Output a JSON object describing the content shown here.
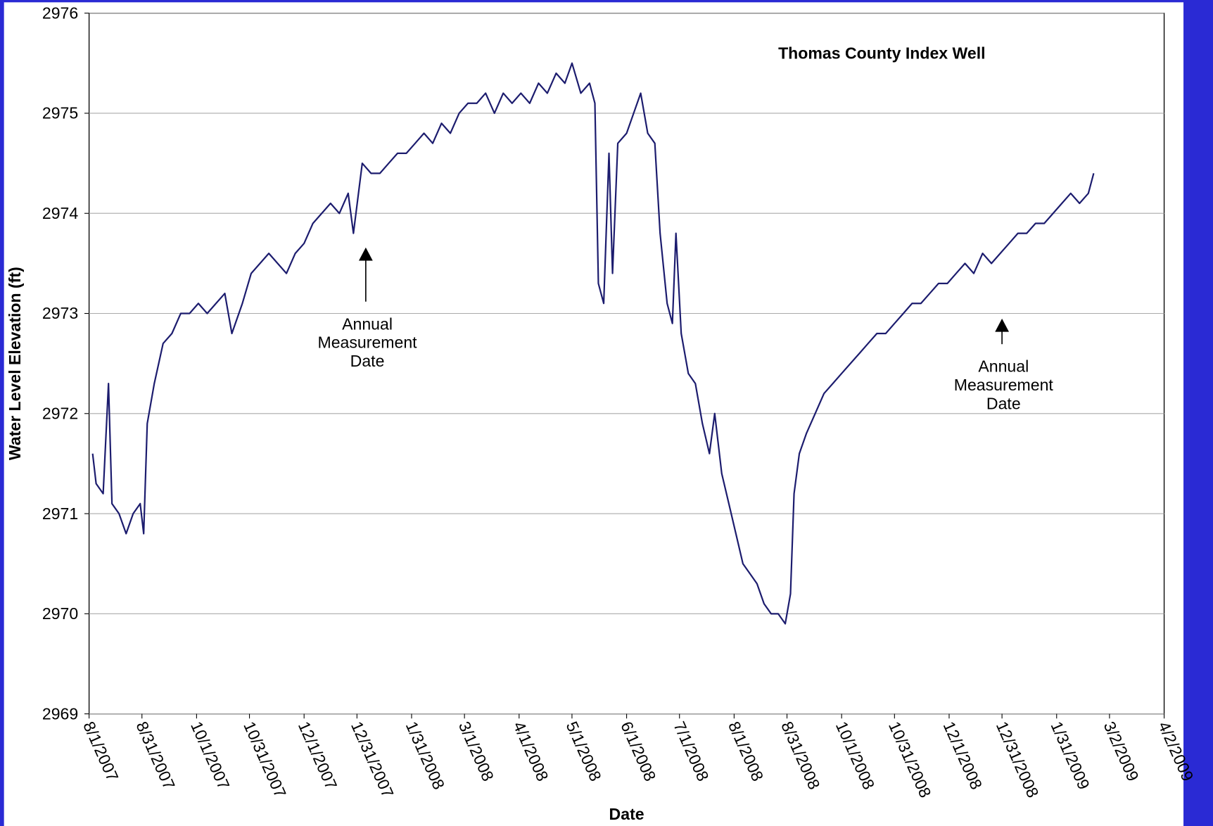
{
  "chart_data": {
    "type": "line",
    "title": "Thomas County Index Well",
    "x_label": "Date",
    "y_label": "Water Level Elevation (ft)",
    "color": "#1c1c6e",
    "grid": true,
    "x": [
      "8/3/2007",
      "8/5/2007",
      "8/9/2007",
      "8/12/2007",
      "8/14/2007",
      "8/18/2007",
      "8/22/2007",
      "8/26/2007",
      "8/30/2007",
      "9/1/2007",
      "9/3/2007",
      "9/7/2007",
      "9/12/2007",
      "9/17/2007",
      "9/22/2007",
      "9/27/2007",
      "10/2/2007",
      "10/7/2007",
      "10/12/2007",
      "10/17/2007",
      "10/21/2007",
      "10/27/2007",
      "11/1/2007",
      "11/6/2007",
      "11/11/2007",
      "11/16/2007",
      "11/21/2007",
      "11/26/2007",
      "12/1/2007",
      "12/6/2007",
      "12/11/2007",
      "12/16/2007",
      "12/21/2007",
      "12/26/2007",
      "12/29/2007",
      "1/3/2008",
      "1/8/2008",
      "1/13/2008",
      "1/18/2008",
      "1/23/2008",
      "1/28/2008",
      "2/2/2008",
      "2/7/2008",
      "2/12/2008",
      "2/17/2008",
      "2/22/2008",
      "2/27/2008",
      "3/3/2008",
      "3/8/2008",
      "3/13/2008",
      "3/18/2008",
      "3/23/2008",
      "3/28/2008",
      "4/2/2008",
      "4/7/2008",
      "4/12/2008",
      "4/17/2008",
      "4/22/2008",
      "4/27/2008",
      "5/1/2008",
      "5/6/2008",
      "5/11/2008",
      "5/14/2008",
      "5/16/2008",
      "5/19/2008",
      "5/22/2008",
      "5/24/2008",
      "5/27/2008",
      "6/1/2008",
      "6/5/2008",
      "6/9/2008",
      "6/13/2008",
      "6/17/2008",
      "6/20/2008",
      "6/24/2008",
      "6/27/2008",
      "6/29/2008",
      "7/2/2008",
      "7/6/2008",
      "7/10/2008",
      "7/14/2008",
      "7/18/2008",
      "7/21/2008",
      "7/25/2008",
      "7/29/2008",
      "8/2/2008",
      "8/6/2008",
      "8/10/2008",
      "8/14/2008",
      "8/18/2008",
      "8/22/2008",
      "8/26/2008",
      "8/30/2008",
      "9/2/2008",
      "9/4/2008",
      "9/7/2008",
      "9/11/2008",
      "9/16/2008",
      "9/21/2008",
      "9/26/2008",
      "10/1/2008",
      "10/6/2008",
      "10/11/2008",
      "10/16/2008",
      "10/21/2008",
      "10/26/2008",
      "10/31/2008",
      "11/5/2008",
      "11/10/2008",
      "11/15/2008",
      "11/20/2008",
      "11/25/2008",
      "11/30/2008",
      "12/5/2008",
      "12/10/2008",
      "12/15/2008",
      "12/20/2008",
      "12/25/2008",
      "12/30/2008",
      "1/4/2009",
      "1/9/2009",
      "1/14/2009",
      "1/19/2009",
      "1/24/2009",
      "1/29/2009",
      "2/3/2009",
      "2/8/2009",
      "2/13/2009",
      "2/18/2009",
      "2/21/2009"
    ],
    "values": [
      2971.6,
      2971.3,
      2971.2,
      2972.3,
      2971.1,
      2971.0,
      2970.8,
      2971.0,
      2971.1,
      2970.8,
      2971.9,
      2972.3,
      2972.7,
      2972.8,
      2973.0,
      2973.0,
      2973.1,
      2973.0,
      2973.1,
      2973.2,
      2972.8,
      2973.1,
      2973.4,
      2973.5,
      2973.6,
      2973.5,
      2973.4,
      2973.6,
      2973.7,
      2973.9,
      2974.0,
      2974.1,
      2974.0,
      2974.2,
      2973.8,
      2974.5,
      2974.4,
      2974.4,
      2974.5,
      2974.6,
      2974.6,
      2974.7,
      2974.8,
      2974.7,
      2974.9,
      2974.8,
      2975.0,
      2975.1,
      2975.1,
      2975.2,
      2975.0,
      2975.2,
      2975.1,
      2975.2,
      2975.1,
      2975.3,
      2975.2,
      2975.4,
      2975.3,
      2975.5,
      2975.2,
      2975.3,
      2975.1,
      2973.3,
      2973.1,
      2974.6,
      2973.4,
      2974.7,
      2974.8,
      2975.0,
      2975.2,
      2974.8,
      2974.7,
      2973.8,
      2973.1,
      2972.9,
      2973.8,
      2972.8,
      2972.4,
      2972.3,
      2971.9,
      2971.6,
      2972.0,
      2971.4,
      2971.1,
      2970.8,
      2970.5,
      2970.4,
      2970.3,
      2970.1,
      2970.0,
      2970.0,
      2969.9,
      2970.2,
      2971.2,
      2971.6,
      2971.8,
      2972.0,
      2972.2,
      2972.3,
      2972.4,
      2972.5,
      2972.6,
      2972.7,
      2972.8,
      2972.8,
      2972.9,
      2973.0,
      2973.1,
      2973.1,
      2973.2,
      2973.3,
      2973.3,
      2973.4,
      2973.5,
      2973.4,
      2973.6,
      2973.5,
      2973.6,
      2973.7,
      2973.8,
      2973.8,
      2973.9,
      2973.9,
      2974.0,
      2974.1,
      2974.2,
      2974.1,
      2974.2,
      2974.4
    ],
    "xlim": [
      "8/1/2007",
      "4/2/2009"
    ],
    "xticks": [
      "8/1/2007",
      "8/31/2007",
      "10/1/2007",
      "10/31/2007",
      "12/1/2007",
      "12/31/2007",
      "1/31/2008",
      "3/1/2008",
      "4/1/2008",
      "5/1/2008",
      "6/1/2008",
      "7/1/2008",
      "8/1/2008",
      "8/31/2008",
      "10/1/2008",
      "10/31/2008",
      "12/1/2008",
      "12/31/2008",
      "1/31/2009",
      "3/2/2009",
      "4/2/2009"
    ],
    "ylim": [
      2969,
      2976
    ],
    "yticks": [
      2969,
      2970,
      2971,
      2972,
      2973,
      2974,
      2975,
      2976
    ],
    "annotations": [
      {
        "x": "1/5/2008",
        "text": [
          "Annual",
          "Measurement",
          "Date"
        ]
      },
      {
        "x": "12/31/2008",
        "text": [
          "Annual",
          "Measurement",
          "Date"
        ]
      }
    ]
  }
}
